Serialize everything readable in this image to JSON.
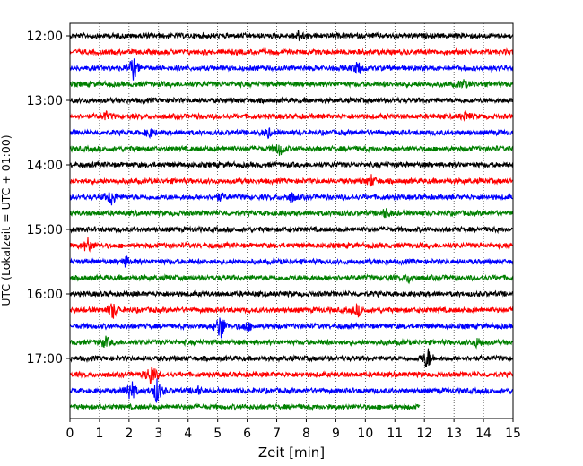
{
  "chart_data": {
    "type": "line",
    "xlabel": "Zeit  [min]",
    "ylabel": "UTC (Lokalzeit = UTC + 01:00)",
    "xlim": [
      0,
      15
    ],
    "x_ticks": [
      "0",
      "1",
      "2",
      "3",
      "4",
      "5",
      "6",
      "7",
      "8",
      "9",
      "10",
      "11",
      "12",
      "13",
      "14",
      "15"
    ],
    "y_ticks": [
      "12:00",
      "13:00",
      "14:00",
      "15:00",
      "16:00",
      "17:00"
    ],
    "grid": "vertical dotted lines at each minute",
    "colors": [
      "#000000",
      "#ff0000",
      "#0000ff",
      "#008000"
    ],
    "traces": [
      {
        "start": "12:00",
        "color": "#000000",
        "end_min": 15,
        "events": [
          [
            7.75,
            0.35
          ]
        ]
      },
      {
        "start": "12:15",
        "color": "#ff0000",
        "end_min": 15,
        "events": []
      },
      {
        "start": "12:30",
        "color": "#0000ff",
        "end_min": 15,
        "events": [
          [
            2.15,
            0.8
          ],
          [
            9.75,
            0.45
          ]
        ]
      },
      {
        "start": "12:45",
        "color": "#008000",
        "end_min": 15,
        "events": [
          [
            13.3,
            0.3
          ]
        ]
      },
      {
        "start": "13:00",
        "color": "#000000",
        "end_min": 15,
        "events": []
      },
      {
        "start": "13:15",
        "color": "#ff0000",
        "end_min": 15,
        "events": [
          [
            1.2,
            0.3
          ],
          [
            13.4,
            0.3
          ]
        ]
      },
      {
        "start": "13:30",
        "color": "#0000ff",
        "end_min": 15,
        "events": [
          [
            2.7,
            0.3
          ],
          [
            6.7,
            0.3
          ]
        ]
      },
      {
        "start": "13:45",
        "color": "#008000",
        "end_min": 15,
        "events": [
          [
            7.1,
            0.45
          ]
        ]
      },
      {
        "start": "14:00",
        "color": "#000000",
        "end_min": 15,
        "events": []
      },
      {
        "start": "14:15",
        "color": "#ff0000",
        "end_min": 15,
        "events": [
          [
            10.2,
            0.35
          ]
        ]
      },
      {
        "start": "14:30",
        "color": "#0000ff",
        "end_min": 15,
        "events": [
          [
            1.4,
            0.6
          ],
          [
            5.1,
            0.25
          ],
          [
            7.5,
            0.3
          ]
        ]
      },
      {
        "start": "14:45",
        "color": "#008000",
        "end_min": 15,
        "events": [
          [
            10.7,
            0.3
          ]
        ]
      },
      {
        "start": "15:00",
        "color": "#000000",
        "end_min": 15,
        "events": []
      },
      {
        "start": "15:15",
        "color": "#ff0000",
        "end_min": 15,
        "events": [
          [
            0.6,
            0.5
          ]
        ]
      },
      {
        "start": "15:30",
        "color": "#0000ff",
        "end_min": 15,
        "events": [
          [
            1.9,
            0.3
          ]
        ]
      },
      {
        "start": "15:45",
        "color": "#008000",
        "end_min": 15,
        "events": [
          [
            11.5,
            0.3
          ]
        ]
      },
      {
        "start": "16:00",
        "color": "#000000",
        "end_min": 15,
        "events": []
      },
      {
        "start": "16:15",
        "color": "#ff0000",
        "end_min": 15,
        "events": [
          [
            1.45,
            0.6
          ],
          [
            9.75,
            0.4
          ]
        ]
      },
      {
        "start": "16:30",
        "color": "#0000ff",
        "end_min": 15,
        "events": [
          [
            5.1,
            1.0
          ],
          [
            6.0,
            0.35
          ]
        ]
      },
      {
        "start": "16:45",
        "color": "#008000",
        "end_min": 15,
        "events": [
          [
            1.2,
            0.35
          ],
          [
            13.8,
            0.3
          ]
        ]
      },
      {
        "start": "17:00",
        "color": "#000000",
        "end_min": 15,
        "events": [
          [
            12.1,
            0.8
          ]
        ]
      },
      {
        "start": "17:15",
        "color": "#ff0000",
        "end_min": 15,
        "events": [
          [
            2.75,
            0.8
          ]
        ]
      },
      {
        "start": "17:30",
        "color": "#0000ff",
        "end_min": 15,
        "events": [
          [
            2.05,
            0.9
          ],
          [
            2.95,
            0.9
          ],
          [
            4.3,
            0.3
          ]
        ]
      },
      {
        "start": "17:45",
        "color": "#008000",
        "end_min": 11.85,
        "events": []
      }
    ]
  }
}
